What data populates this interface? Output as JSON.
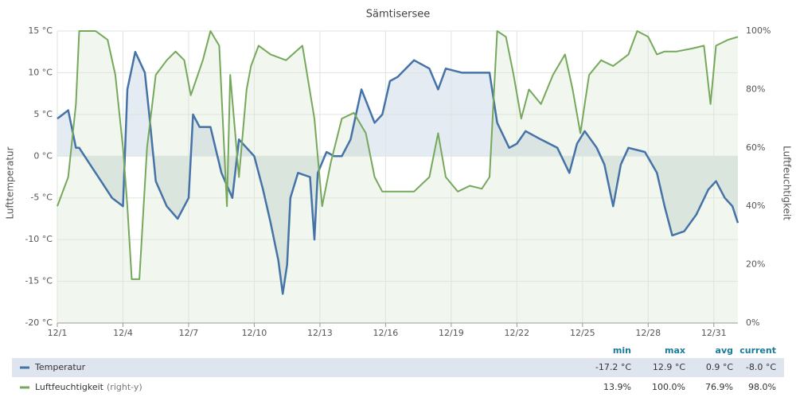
{
  "chart_data": {
    "type": "line",
    "title": "Sämtisersee",
    "y_label": "Lufttemperatur",
    "y2_label": "Luftfeuchtigkeit",
    "xlim": [
      0,
      31.1
    ],
    "xticks": [
      {
        "value": 0,
        "label": "12/1"
      },
      {
        "value": 3,
        "label": "12/4"
      },
      {
        "value": 6,
        "label": "12/7"
      },
      {
        "value": 9,
        "label": "12/10"
      },
      {
        "value": 12,
        "label": "12/13"
      },
      {
        "value": 15,
        "label": "12/16"
      },
      {
        "value": 18,
        "label": "12/19"
      },
      {
        "value": 21,
        "label": "12/22"
      },
      {
        "value": 24,
        "label": "12/25"
      },
      {
        "value": 27,
        "label": "12/28"
      },
      {
        "value": 30,
        "label": "12/31"
      }
    ],
    "ylim": [
      -20,
      15
    ],
    "yticks": [
      {
        "value": -20,
        "label": "-20 °C"
      },
      {
        "value": -15,
        "label": "-15 °C"
      },
      {
        "value": -10,
        "label": "-10 °C"
      },
      {
        "value": -5,
        "label": "-5 °C"
      },
      {
        "value": 0,
        "label": "0 °C"
      },
      {
        "value": 5,
        "label": "5 °C"
      },
      {
        "value": 10,
        "label": "10 °C"
      },
      {
        "value": 15,
        "label": "15 °C"
      }
    ],
    "y2lim": [
      0,
      100
    ],
    "y2ticks": [
      {
        "value": 0,
        "label": "0%"
      },
      {
        "value": 20,
        "label": "20%"
      },
      {
        "value": 40,
        "label": "40%"
      },
      {
        "value": 60,
        "label": "60%"
      },
      {
        "value": 80,
        "label": "80%"
      },
      {
        "value": 100,
        "label": "100%"
      }
    ],
    "grid": true,
    "series": [
      {
        "name": "Temperatur",
        "color": "#4572a7",
        "x": [
          0,
          0.5,
          0.85,
          1,
          1.5,
          2,
          2.5,
          3,
          3.2,
          3.56,
          4,
          4.2,
          4.5,
          5,
          5.5,
          6,
          6.2,
          6.5,
          7,
          7.5,
          8,
          8.3,
          9,
          9.4,
          9.75,
          10.1,
          10.3,
          10.5,
          10.65,
          11,
          11.55,
          11.75,
          11.9,
          12.3,
          12.65,
          13,
          13.4,
          13.9,
          14.5,
          14.85,
          15.2,
          15.55,
          16.3,
          17,
          17.4,
          17.75,
          18.5,
          19.2,
          19.75,
          20.1,
          20.65,
          21,
          21.4,
          22.1,
          22.85,
          23.4,
          23.75,
          24.1,
          24.65,
          25,
          25.4,
          25.75,
          26.1,
          26.85,
          27.4,
          27.75,
          28.1,
          28.65,
          29.2,
          29.75,
          30.1,
          30.5,
          30.85,
          31.1
        ],
        "values": [
          4.5,
          5.5,
          1,
          1,
          -1,
          -3,
          -5,
          -6,
          8,
          12.5,
          10,
          5,
          -3,
          -6,
          -7.5,
          -5,
          5,
          3.5,
          3.5,
          -2,
          -5,
          2,
          0,
          -4,
          -8,
          -12.5,
          -16.5,
          -13,
          -5,
          -2,
          -2.5,
          -10,
          -2,
          0.5,
          0,
          0,
          2,
          8,
          4,
          5,
          9,
          9.5,
          11.5,
          10.5,
          8,
          10.5,
          10,
          10,
          10,
          4,
          1,
          1.5,
          3,
          2,
          1,
          -2,
          1.5,
          3,
          1,
          -1,
          -6,
          -1,
          1,
          0.5,
          -2,
          -6,
          -9.5,
          -9,
          -7,
          -4,
          -3,
          -5,
          -6,
          -8
        ],
        "stats": [
          "-17.2 °C",
          "12.9 °C",
          "0.9 °C",
          "-8.0 °C"
        ]
      },
      {
        "name": "Luftfeuchtigkeit",
        "legend_suffix": "(right-y)",
        "color": "#76a85c",
        "axis": "y2",
        "x": [
          0,
          0.5,
          0.85,
          1,
          1.75,
          2.3,
          2.65,
          3,
          3.2,
          3.4,
          3.75,
          4.1,
          4.5,
          5,
          5.4,
          5.8,
          6.1,
          6.65,
          7,
          7.4,
          7.75,
          7.9,
          8.3,
          8.65,
          8.85,
          9.2,
          9.75,
          10.45,
          11.2,
          11.75,
          12.1,
          12.5,
          13,
          13.55,
          14.1,
          14.5,
          14.85,
          15.55,
          16.3,
          17,
          17.4,
          17.75,
          18.3,
          18.85,
          19.4,
          19.75,
          20.1,
          20.5,
          20.85,
          21.2,
          21.55,
          22.1,
          22.65,
          23.2,
          23.55,
          23.9,
          24.3,
          24.85,
          25.4,
          26.1,
          26.5,
          27,
          27.4,
          27.75,
          28.3,
          29,
          29.55,
          29.85,
          30.1,
          30.65,
          31.1
        ],
        "values": [
          40,
          50,
          75,
          100,
          100,
          97,
          85,
          60,
          40,
          15,
          15,
          60,
          85,
          90,
          93,
          90,
          78,
          90,
          100,
          95,
          40,
          85,
          50,
          80,
          88,
          95,
          92,
          90,
          95,
          70,
          40,
          55,
          70,
          72,
          65,
          50,
          45,
          45,
          45,
          50,
          65,
          50,
          45,
          47,
          46,
          50,
          100,
          98,
          85,
          70,
          80,
          75,
          85,
          92,
          80,
          65,
          85,
          90,
          88,
          92,
          100,
          98,
          92,
          93,
          93,
          94,
          95,
          75,
          95,
          97,
          98
        ],
        "stats": [
          "13.9%",
          "100.0%",
          "76.9%",
          "98.0%"
        ]
      }
    ],
    "stats_columns": [
      "min",
      "max",
      "avg",
      "current"
    ]
  }
}
